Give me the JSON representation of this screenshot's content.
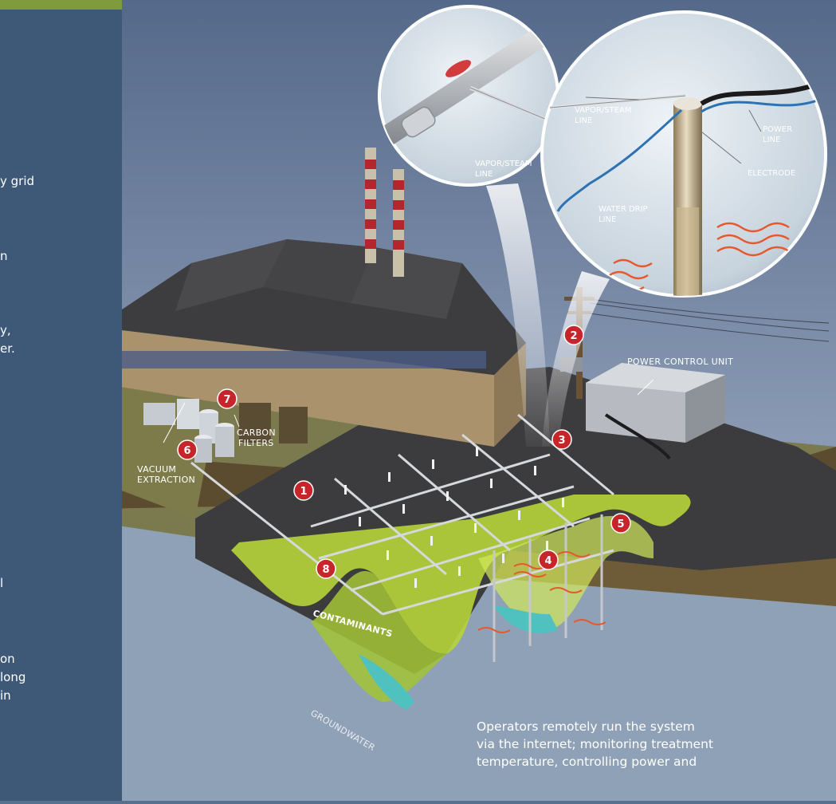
{
  "side_text": [
    "y grid",
    "n",
    "y,",
    "er.",
    "l",
    "on",
    " long",
    " in"
  ],
  "labels": {
    "vapor_steam_line_left": [
      "VAPOR/STEAM",
      "LINE"
    ],
    "vapor_steam_line_top": [
      "VAPOR/STEAM",
      "LINE"
    ],
    "power_line": [
      "POWER",
      "LINE"
    ],
    "electrode": "ELECTRODE",
    "water_drip_line": [
      "WATER  DRIP",
      "LINE"
    ],
    "power_control_unit": "POWER CONTROL UNIT",
    "carbon_filters": [
      "CARBON",
      "FILTERS"
    ],
    "vacuum_extraction": [
      "VACUUM",
      "EXTRACTION"
    ],
    "contaminants": "CONTAMINANTS",
    "groundwater": "GROUNDWATER"
  },
  "markers": [
    "1",
    "2",
    "3",
    "4",
    "5",
    "6",
    "7",
    "8"
  ],
  "caption": [
    "Operators remotely run the system",
    "via the internet; monitoring treatment",
    "temperature, controlling power and"
  ],
  "colors": {
    "panel": "#3e5877",
    "accent": "#7f9b3b",
    "marker": "#c8252b",
    "contaminant": "#b6d43a",
    "ground": "#4f4127",
    "water": "#8fa1b6"
  }
}
